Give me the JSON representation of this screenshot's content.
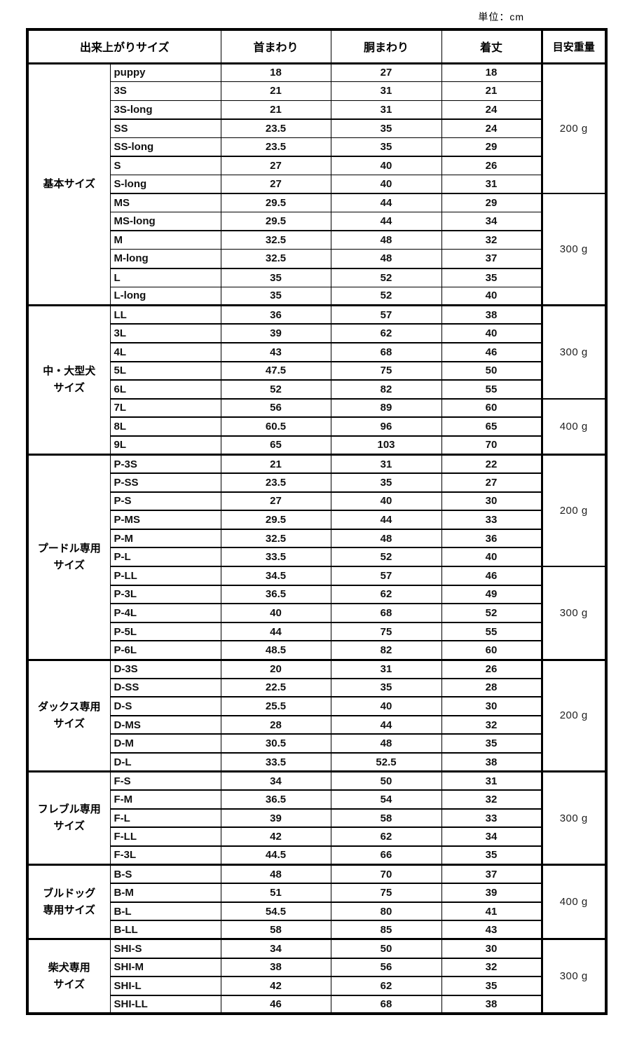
{
  "unit_label": "単位：cm",
  "colors": {
    "border": "#000000",
    "text": "#111111",
    "background": "#ffffff"
  },
  "table": {
    "headers": {
      "size": "出来上がりサイズ",
      "neck": "首まわり",
      "girth": "胴まわり",
      "length": "着丈",
      "weight": "目安重量"
    },
    "groups": [
      {
        "name": "基本サイズ",
        "rows": [
          [
            "puppy",
            "18",
            "27",
            "18"
          ],
          [
            "3S",
            "21",
            "31",
            "21"
          ],
          [
            "3S-long",
            "21",
            "31",
            "24"
          ],
          [
            "SS",
            "23.5",
            "35",
            "24"
          ],
          [
            "SS-long",
            "23.5",
            "35",
            "29"
          ],
          [
            "S",
            "27",
            "40",
            "26"
          ],
          [
            "S-long",
            "27",
            "40",
            "31"
          ],
          [
            "MS",
            "29.5",
            "44",
            "29"
          ],
          [
            "MS-long",
            "29.5",
            "44",
            "34"
          ],
          [
            "M",
            "32.5",
            "48",
            "32"
          ],
          [
            "M-long",
            "32.5",
            "48",
            "37"
          ],
          [
            "L",
            "35",
            "52",
            "35"
          ],
          [
            "L-long",
            "35",
            "52",
            "40"
          ]
        ],
        "weights": [
          {
            "label": "200 g",
            "rows": 7
          },
          {
            "label": "300 g",
            "rows": 6
          }
        ]
      },
      {
        "name": "中・大型犬\nサイズ",
        "rows": [
          [
            "LL",
            "36",
            "57",
            "38"
          ],
          [
            "3L",
            "39",
            "62",
            "40"
          ],
          [
            "4L",
            "43",
            "68",
            "46"
          ],
          [
            "5L",
            "47.5",
            "75",
            "50"
          ],
          [
            "6L",
            "52",
            "82",
            "55"
          ],
          [
            "7L",
            "56",
            "89",
            "60"
          ],
          [
            "8L",
            "60.5",
            "96",
            "65"
          ],
          [
            "9L",
            "65",
            "103",
            "70"
          ]
        ],
        "weights": [
          {
            "label": "300 g",
            "rows": 5
          },
          {
            "label": "400 g",
            "rows": 3
          }
        ]
      },
      {
        "name": "プードル専用\nサイズ",
        "rows": [
          [
            "P-3S",
            "21",
            "31",
            "22"
          ],
          [
            "P-SS",
            "23.5",
            "35",
            "27"
          ],
          [
            "P-S",
            "27",
            "40",
            "30"
          ],
          [
            "P-MS",
            "29.5",
            "44",
            "33"
          ],
          [
            "P-M",
            "32.5",
            "48",
            "36"
          ],
          [
            "P-L",
            "33.5",
            "52",
            "40"
          ],
          [
            "P-LL",
            "34.5",
            "57",
            "46"
          ],
          [
            "P-3L",
            "36.5",
            "62",
            "49"
          ],
          [
            "P-4L",
            "40",
            "68",
            "52"
          ],
          [
            "P-5L",
            "44",
            "75",
            "55"
          ],
          [
            "P-6L",
            "48.5",
            "82",
            "60"
          ]
        ],
        "weights": [
          {
            "label": "200 g",
            "rows": 6
          },
          {
            "label": "300 g",
            "rows": 5
          }
        ]
      },
      {
        "name": "ダックス専用\nサイズ",
        "rows": [
          [
            "D-3S",
            "20",
            "31",
            "26"
          ],
          [
            "D-SS",
            "22.5",
            "35",
            "28"
          ],
          [
            "D-S",
            "25.5",
            "40",
            "30"
          ],
          [
            "D-MS",
            "28",
            "44",
            "32"
          ],
          [
            "D-M",
            "30.5",
            "48",
            "35"
          ],
          [
            "D-L",
            "33.5",
            "52.5",
            "38"
          ]
        ],
        "weights": [
          {
            "label": "200 g",
            "rows": 6
          }
        ]
      },
      {
        "name": "フレブル専用\nサイズ",
        "rows": [
          [
            "F-S",
            "34",
            "50",
            "31"
          ],
          [
            "F-M",
            "36.5",
            "54",
            "32"
          ],
          [
            "F-L",
            "39",
            "58",
            "33"
          ],
          [
            "F-LL",
            "42",
            "62",
            "34"
          ],
          [
            "F-3L",
            "44.5",
            "66",
            "35"
          ]
        ],
        "weights": [
          {
            "label": "300 g",
            "rows": 5
          }
        ]
      },
      {
        "name": "ブルドッグ\n専用サイズ",
        "rows": [
          [
            "B-S",
            "48",
            "70",
            "37"
          ],
          [
            "B-M",
            "51",
            "75",
            "39"
          ],
          [
            "B-L",
            "54.5",
            "80",
            "41"
          ],
          [
            "B-LL",
            "58",
            "85",
            "43"
          ]
        ],
        "weights": [
          {
            "label": "400 g",
            "rows": 4
          }
        ]
      },
      {
        "name": "柴犬専用\nサイズ",
        "rows": [
          [
            "SHI-S",
            "34",
            "50",
            "30"
          ],
          [
            "SHI-M",
            "38",
            "56",
            "32"
          ],
          [
            "SHI-L",
            "42",
            "62",
            "35"
          ],
          [
            "SHI-LL",
            "46",
            "68",
            "38"
          ]
        ],
        "weights": [
          {
            "label": "300 g",
            "rows": 4
          }
        ]
      }
    ]
  }
}
